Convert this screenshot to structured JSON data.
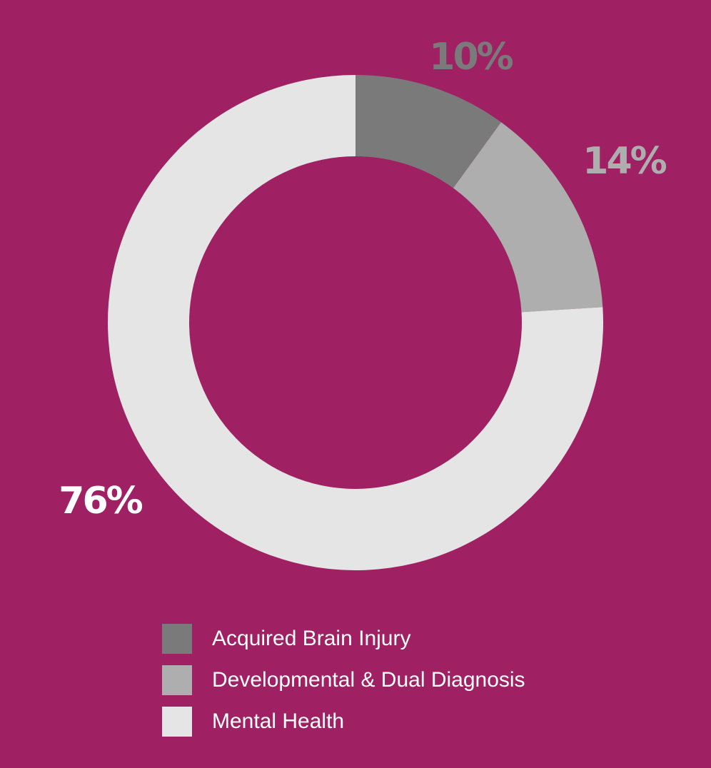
{
  "background_color": "#a02163",
  "chart_data": {
    "type": "pie",
    "style": "donut",
    "title": "",
    "start_angle_deg": 0,
    "direction": "clockwise",
    "legend_position": "bottom",
    "slices": [
      {
        "name": "Acquired Brain Injury",
        "value": 10,
        "label": "10%",
        "color": "#7a7a7b",
        "label_color": "#7a7a7b"
      },
      {
        "name": "Developmental & Dual Diagnosis",
        "value": 14,
        "label": "14%",
        "color": "#aeaeae",
        "label_color": "#aeaeae"
      },
      {
        "name": "Mental Health",
        "value": 76,
        "label": "76%",
        "color": "#e6e5e5",
        "label_color": "#ffffff"
      }
    ]
  }
}
